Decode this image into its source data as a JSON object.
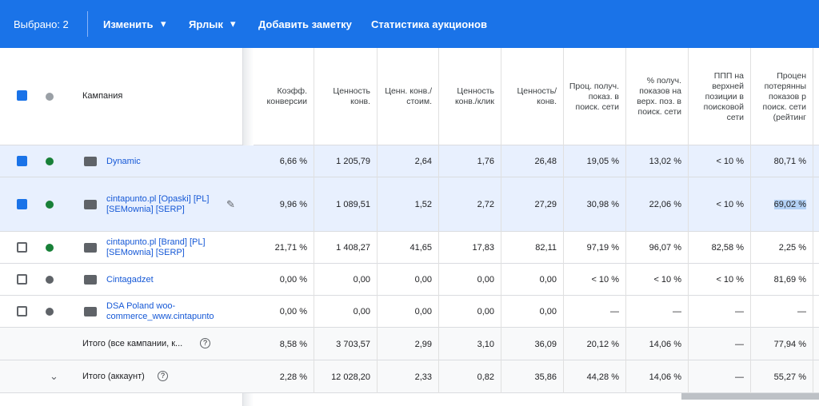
{
  "toolbar": {
    "selected": "Выбрано: 2",
    "actions": [
      "Изменить",
      "Ярлык",
      "Добавить заметку",
      "Статистика аукционов"
    ]
  },
  "table": {
    "columns": [
      "Кампания",
      "Коэфф. конверсии",
      "Ценность конв.",
      "Ценн. конв./ стоим.",
      "Ценность конв./клик",
      "Ценность/ конв.",
      "Проц. получ. показ. в поиск. сети",
      "% получ. показов на верх. поз. в поиск. сети",
      "ППП на верхней позиции в поисковой сети",
      "Процен потерянны показов р поиск. сети (рейтинг"
    ],
    "rows": [
      {
        "name": "Dynamic",
        "selected": true,
        "paused": false,
        "values": [
          "6,66 %",
          "1 205,79",
          "2,64",
          "1,76",
          "26,48",
          "19,05 %",
          "13,02 %",
          "< 10 %",
          "80,71 %"
        ]
      },
      {
        "name": "cintapunto.pl [Opaski] [PL] [SEMownia] [SERP]",
        "selected": true,
        "paused": false,
        "values": [
          "9,96 %",
          "1 089,51",
          "1,52",
          "2,72",
          "27,29",
          "30,98 %",
          "22,06 %",
          "< 10 %",
          "69,02 %"
        ]
      },
      {
        "name": "cintapunto.pl [Brand] [PL] [SEMownia] [SERP]",
        "selected": false,
        "paused": false,
        "values": [
          "21,71 %",
          "1 408,27",
          "41,65",
          "17,83",
          "82,11",
          "97,19 %",
          "96,07 %",
          "82,58 %",
          "2,25 %"
        ]
      },
      {
        "name": "Cintagadzet",
        "selected": false,
        "paused": true,
        "values": [
          "0,00 %",
          "0,00",
          "0,00",
          "0,00",
          "0,00",
          "< 10 %",
          "< 10 %",
          "< 10 %",
          "81,69 %"
        ]
      },
      {
        "name": "DSA Poland woo-commerce_www.cintapunto",
        "selected": false,
        "paused": true,
        "values": [
          "0,00 %",
          "0,00",
          "0,00",
          "0,00",
          "0,00",
          "—",
          "—",
          "—",
          "—"
        ]
      }
    ],
    "totals": [
      {
        "label": "Итого (все кампании, к...",
        "values": [
          "8,58 %",
          "3 703,57",
          "2,99",
          "3,10",
          "36,09",
          "20,12 %",
          "14,06 %",
          "—",
          "77,94 %"
        ]
      },
      {
        "label": "Итого (аккаунт)",
        "values": [
          "2,28 %",
          "12 028,20",
          "2,33",
          "0,82",
          "35,86",
          "44,28 %",
          "14,06 %",
          "—",
          "55,27 %"
        ]
      }
    ]
  }
}
